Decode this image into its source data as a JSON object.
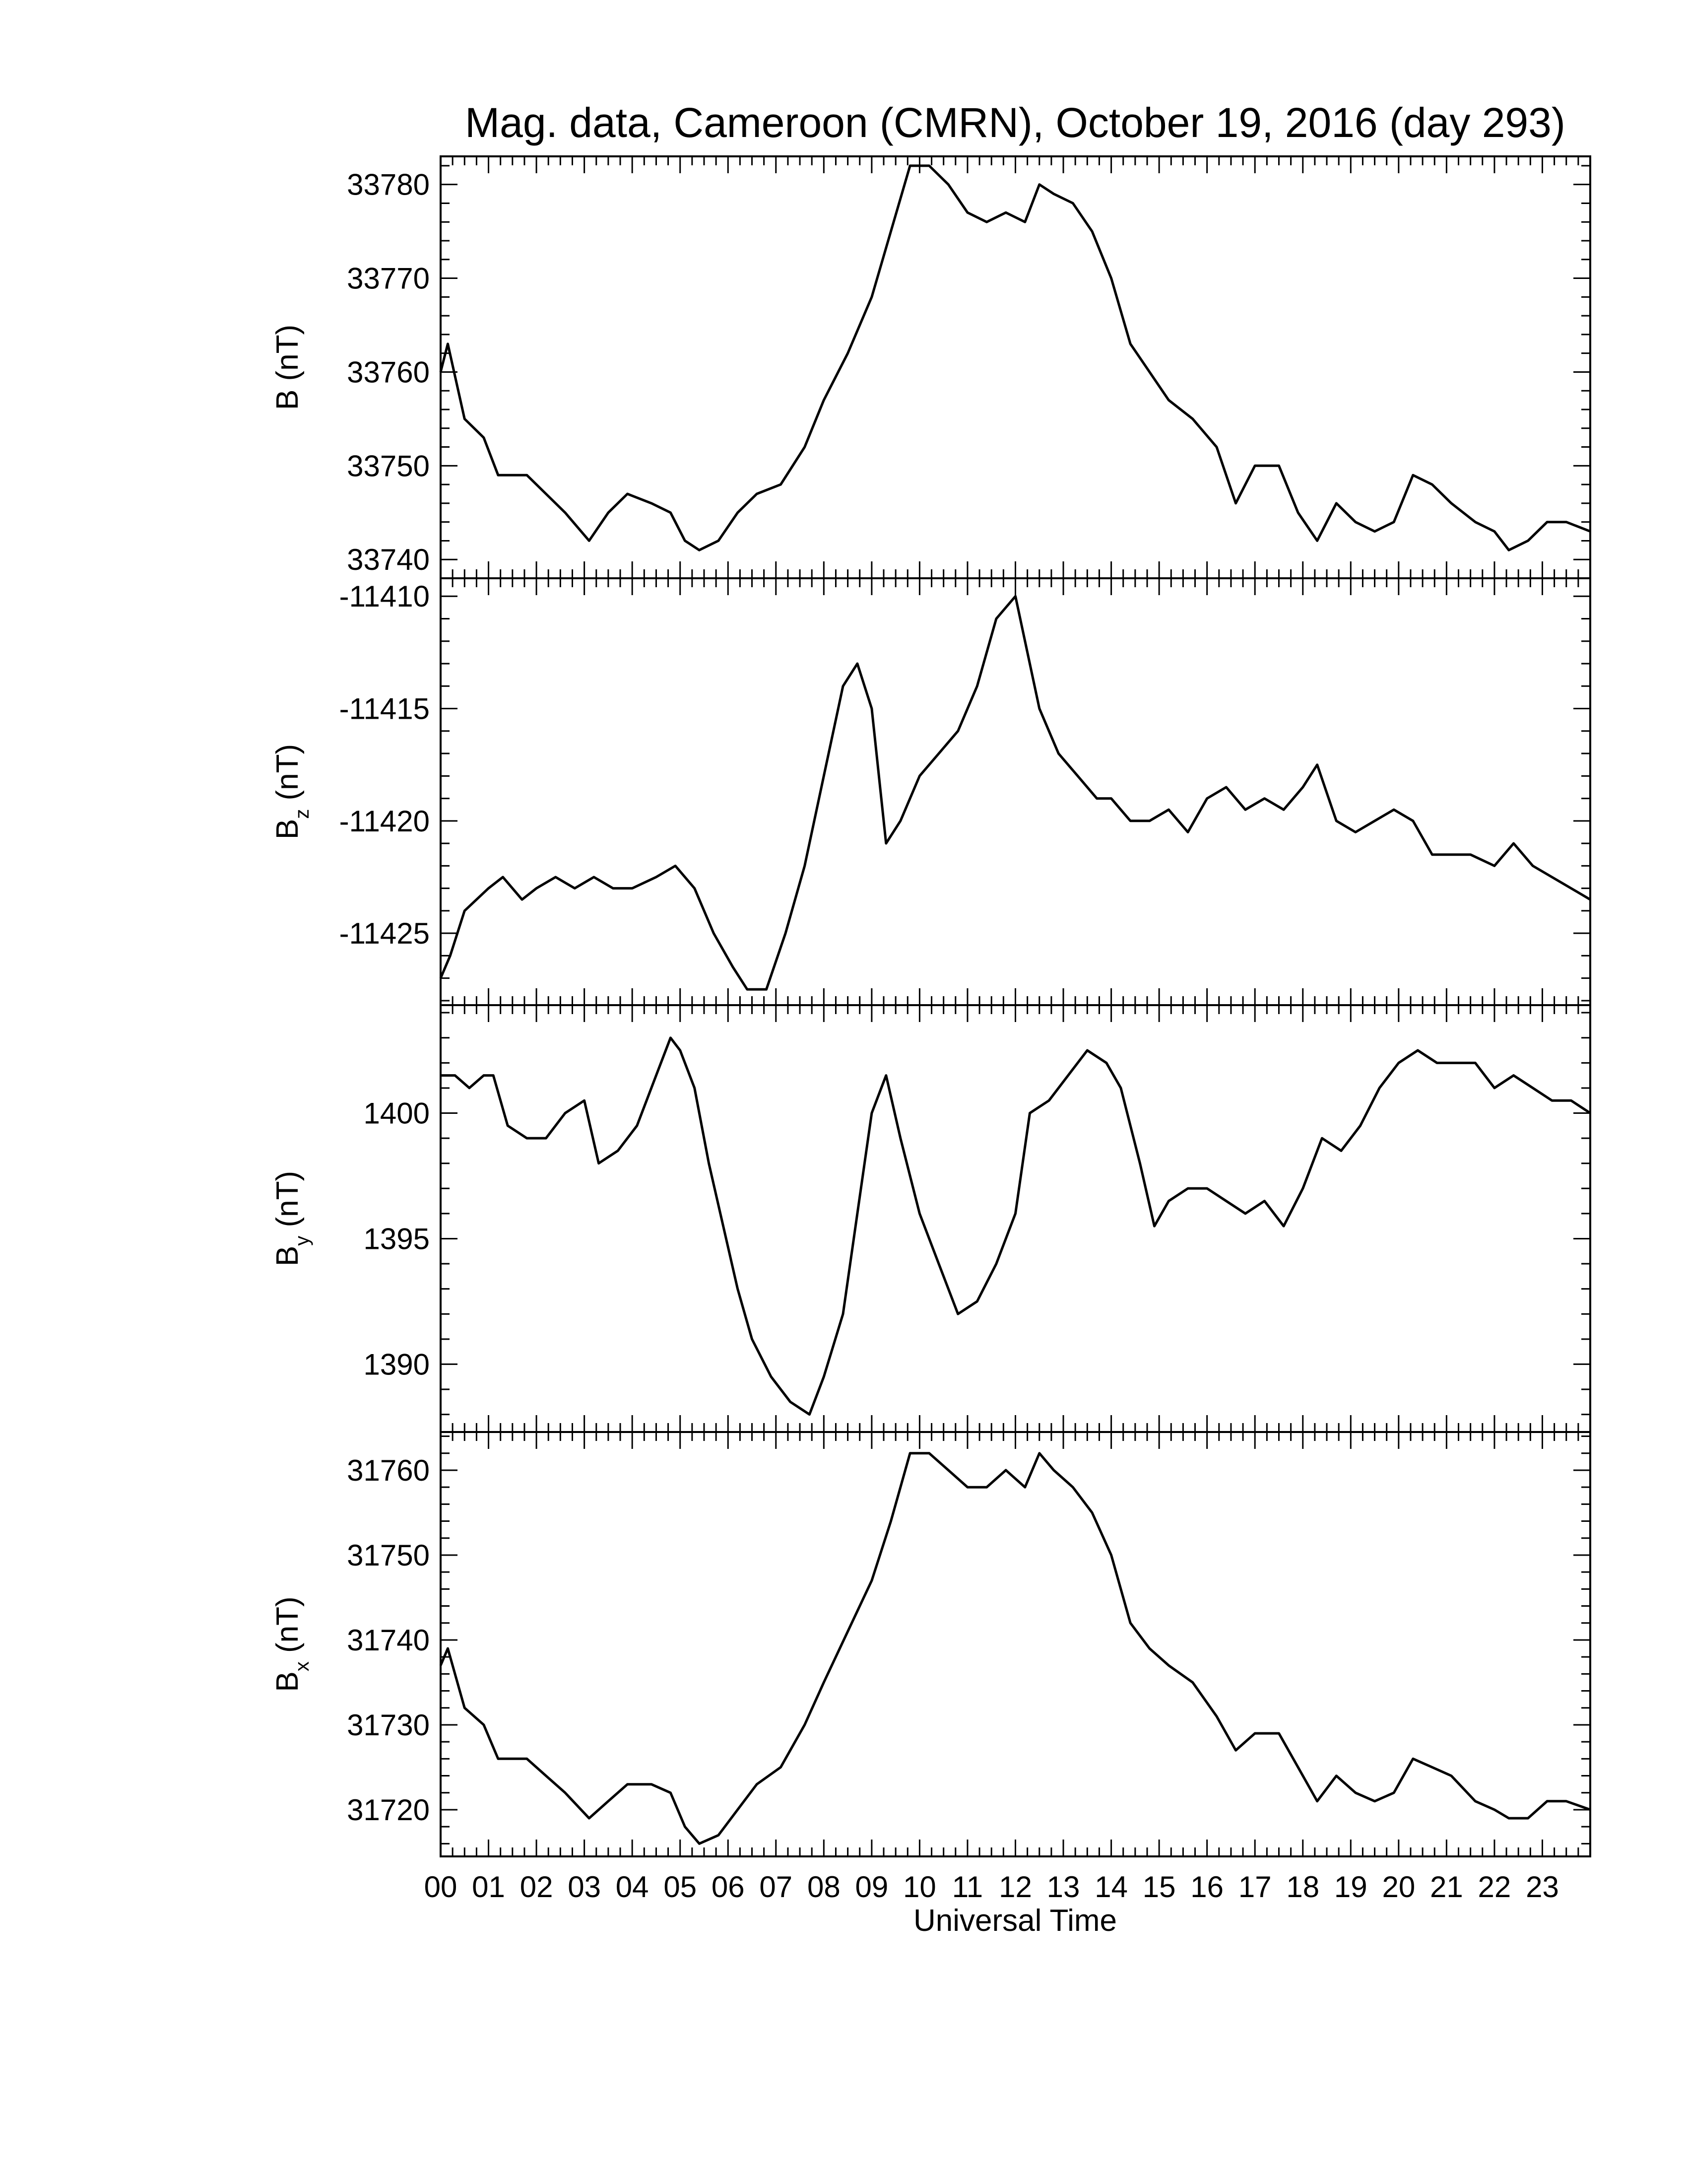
{
  "chart_data": {
    "type": "line",
    "title": "Mag. data, Cameroon (CMRN), October 19, 2016 (day 293)",
    "xlabel": "Universal Time",
    "xlim": [
      0,
      24
    ],
    "x_tick_labels": [
      "00",
      "01",
      "02",
      "03",
      "04",
      "05",
      "06",
      "07",
      "08",
      "09",
      "10",
      "11",
      "12",
      "13",
      "14",
      "15",
      "16",
      "17",
      "18",
      "19",
      "20",
      "21",
      "22",
      "23"
    ],
    "panels": [
      {
        "name": "B",
        "ylabel": "B (nT)",
        "ylabel_main": "B",
        "ylabel_sub": "",
        "ylabel_unit": "(nT)",
        "ylim": [
          33738,
          33783
        ],
        "y_ticks": [
          33740,
          33750,
          33760,
          33770,
          33780
        ],
        "y_tick_labels": [
          "33740",
          "33750",
          "33760",
          "33770",
          "33780"
        ],
        "x": [
          0,
          0.15,
          0.5,
          0.9,
          1.2,
          1.8,
          2.2,
          2.6,
          3.1,
          3.5,
          3.9,
          4.4,
          4.8,
          5.1,
          5.4,
          5.8,
          6.2,
          6.6,
          7.1,
          7.6,
          8.0,
          8.5,
          9.0,
          9.4,
          9.8,
          10.2,
          10.6,
          11.0,
          11.4,
          11.8,
          12.2,
          12.5,
          12.8,
          13.2,
          13.6,
          14.0,
          14.4,
          14.8,
          15.2,
          15.7,
          16.2,
          16.6,
          17.0,
          17.5,
          17.9,
          18.3,
          18.7,
          19.1,
          19.5,
          19.9,
          20.3,
          20.7,
          21.1,
          21.6,
          22.0,
          22.3,
          22.7,
          23.1,
          23.5,
          24.0
        ],
        "values": [
          33760,
          33763,
          33755,
          33753,
          33749,
          33749,
          33747,
          33745,
          33742,
          33745,
          33747,
          33746,
          33745,
          33742,
          33741,
          33742,
          33745,
          33747,
          33748,
          33752,
          33757,
          33762,
          33768,
          33775,
          33782,
          33782,
          33780,
          33777,
          33776,
          33777,
          33776,
          33780,
          33779,
          33778,
          33775,
          33770,
          33763,
          33760,
          33757,
          33755,
          33752,
          33746,
          33750,
          33750,
          33745,
          33742,
          33746,
          33744,
          33743,
          33744,
          33749,
          33748,
          33746,
          33744,
          33743,
          33741,
          33742,
          33744,
          33744,
          33743
        ]
      },
      {
        "name": "Bz",
        "ylabel": "Bz (nT)",
        "ylabel_main": "B",
        "ylabel_sub": "z",
        "ylabel_unit": "(nT)",
        "ylim": [
          -11428.2,
          -11409.2
        ],
        "y_ticks": [
          -11425,
          -11420,
          -11415,
          -11410
        ],
        "y_tick_labels": [
          "-11425",
          "-11420",
          "-11415",
          "-11410"
        ],
        "x": [
          0,
          0.2,
          0.5,
          1.0,
          1.3,
          1.7,
          2.0,
          2.4,
          2.8,
          3.2,
          3.6,
          4.0,
          4.5,
          4.9,
          5.3,
          5.7,
          6.1,
          6.4,
          6.8,
          7.2,
          7.6,
          8.0,
          8.4,
          8.7,
          9.0,
          9.3,
          9.6,
          10.0,
          10.4,
          10.8,
          11.2,
          11.6,
          12.0,
          12.2,
          12.5,
          12.9,
          13.3,
          13.7,
          14.0,
          14.4,
          14.8,
          15.2,
          15.6,
          16.0,
          16.4,
          16.8,
          17.2,
          17.6,
          18.0,
          18.3,
          18.7,
          19.1,
          19.5,
          19.9,
          20.3,
          20.7,
          21.1,
          21.5,
          22.0,
          22.4,
          22.8,
          23.2,
          23.6,
          24.0
        ],
        "values": [
          -11427,
          -11426,
          -11424,
          -11423,
          -11422.5,
          -11423.5,
          -11423,
          -11422.5,
          -11423,
          -11422.5,
          -11423,
          -11423,
          -11422.5,
          -11422,
          -11423,
          -11425,
          -11426.5,
          -11427.5,
          -11427.5,
          -11425,
          -11422,
          -11418,
          -11414,
          -11413,
          -11415,
          -11421,
          -11420,
          -11418,
          -11417,
          -11416,
          -11414,
          -11411,
          -11410,
          -11412,
          -11415,
          -11417,
          -11418,
          -11419,
          -11419,
          -11420,
          -11420,
          -11419.5,
          -11420.5,
          -11419,
          -11418.5,
          -11419.5,
          -11419,
          -11419.5,
          -11418.5,
          -11417.5,
          -11420,
          -11420.5,
          -11420,
          -11419.5,
          -11420,
          -11421.5,
          -11421.5,
          -11421.5,
          -11422,
          -11421,
          -11422,
          -11422.5,
          -11423,
          -11423.5
        ]
      },
      {
        "name": "By",
        "ylabel": "By (nT)",
        "ylabel_main": "B",
        "ylabel_sub": "y",
        "ylabel_unit": "(nT)",
        "ylim": [
          1387.3,
          1404.3
        ],
        "y_ticks": [
          1390,
          1395,
          1400
        ],
        "y_tick_labels": [
          "1390",
          "1395",
          "1400"
        ],
        "x": [
          0,
          0.3,
          0.6,
          0.9,
          1.1,
          1.4,
          1.8,
          2.2,
          2.6,
          3.0,
          3.3,
          3.7,
          4.1,
          4.5,
          4.8,
          5.0,
          5.3,
          5.6,
          5.9,
          6.2,
          6.5,
          6.9,
          7.3,
          7.7,
          8.0,
          8.4,
          8.7,
          9.0,
          9.3,
          9.6,
          10.0,
          10.4,
          10.8,
          11.2,
          11.6,
          12.0,
          12.3,
          12.7,
          13.1,
          13.5,
          13.9,
          14.2,
          14.6,
          14.9,
          15.2,
          15.6,
          16.0,
          16.4,
          16.8,
          17.2,
          17.6,
          18.0,
          18.4,
          18.8,
          19.2,
          19.6,
          20.0,
          20.4,
          20.8,
          21.2,
          21.6,
          22.0,
          22.4,
          22.8,
          23.2,
          23.6,
          24.0
        ],
        "values": [
          1401.5,
          1401.5,
          1401,
          1401.5,
          1401.5,
          1399.5,
          1399,
          1399,
          1400,
          1400.5,
          1398,
          1398.5,
          1399.5,
          1401.5,
          1403,
          1402.5,
          1401,
          1398,
          1395.5,
          1393,
          1391,
          1389.5,
          1388.5,
          1388,
          1389.5,
          1392,
          1396,
          1400,
          1401.5,
          1399,
          1396,
          1394,
          1392,
          1392.5,
          1394,
          1396,
          1400,
          1400.5,
          1401.5,
          1402.5,
          1402,
          1401,
          1398,
          1395.5,
          1396.5,
          1397,
          1397,
          1396.5,
          1396,
          1396.5,
          1395.5,
          1397,
          1399,
          1398.5,
          1399.5,
          1401,
          1402,
          1402.5,
          1402,
          1402,
          1402,
          1401,
          1401.5,
          1401,
          1400.5,
          1400.5,
          1400
        ]
      },
      {
        "name": "Bx",
        "ylabel": "Bx (nT)",
        "ylabel_main": "B",
        "ylabel_sub": "x",
        "ylabel_unit": "(nT)",
        "ylim": [
          31714.5,
          31764.5
        ],
        "y_ticks": [
          31720,
          31730,
          31740,
          31750,
          31760
        ],
        "y_tick_labels": [
          "31720",
          "31730",
          "31740",
          "31750",
          "31760"
        ],
        "x": [
          0,
          0.15,
          0.5,
          0.9,
          1.2,
          1.8,
          2.2,
          2.6,
          3.1,
          3.5,
          3.9,
          4.4,
          4.8,
          5.1,
          5.4,
          5.8,
          6.2,
          6.6,
          7.1,
          7.6,
          8.0,
          8.5,
          9.0,
          9.4,
          9.8,
          10.2,
          10.6,
          11.0,
          11.4,
          11.8,
          12.2,
          12.5,
          12.8,
          13.2,
          13.6,
          14.0,
          14.4,
          14.8,
          15.2,
          15.7,
          16.2,
          16.6,
          17.0,
          17.5,
          17.9,
          18.3,
          18.7,
          19.1,
          19.5,
          19.9,
          20.3,
          20.7,
          21.1,
          21.6,
          22.0,
          22.3,
          22.7,
          23.1,
          23.5,
          24.0
        ],
        "values": [
          31737,
          31739,
          31732,
          31730,
          31726,
          31726,
          31724,
          31722,
          31719,
          31721,
          31723,
          31723,
          31722,
          31718,
          31716,
          31717,
          31720,
          31723,
          31725,
          31730,
          31735,
          31741,
          31747,
          31754,
          31762,
          31762,
          31760,
          31758,
          31758,
          31760,
          31758,
          31762,
          31760,
          31758,
          31755,
          31750,
          31742,
          31739,
          31737,
          31735,
          31731,
          31727,
          31729,
          31729,
          31725,
          31721,
          31724,
          31722,
          31721,
          31722,
          31726,
          31725,
          31724,
          31721,
          31720,
          31719,
          31719,
          31721,
          31721,
          31720
        ]
      }
    ]
  }
}
